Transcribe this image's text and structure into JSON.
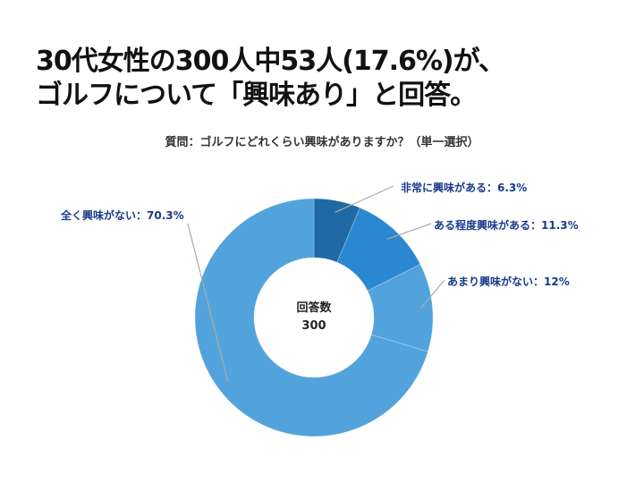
{
  "title_line1": "30代女性の300人中53人(17.6%)が、",
  "title_line2": "ゴルフについて「興味あり」と回答。",
  "chart_data": {
    "type": "pie",
    "donut": true,
    "title": "質問：ゴルフにどれくらい興味がありますか？（単一選択）",
    "center_label": "回答数",
    "center_value": "300",
    "slices": [
      {
        "label": "非常に興味がある：6.3%",
        "value": 6.3,
        "color": "#1f6aa5"
      },
      {
        "label": "ある程度興味がある：11.3%",
        "value": 11.3,
        "color": "#2a88d0"
      },
      {
        "label": "あまり興味がない：12%",
        "value": 12,
        "color": "#52a3dc"
      },
      {
        "label": "全く興味がない：70.3%",
        "value": 70.3,
        "color": "#52a3dc"
      }
    ]
  }
}
